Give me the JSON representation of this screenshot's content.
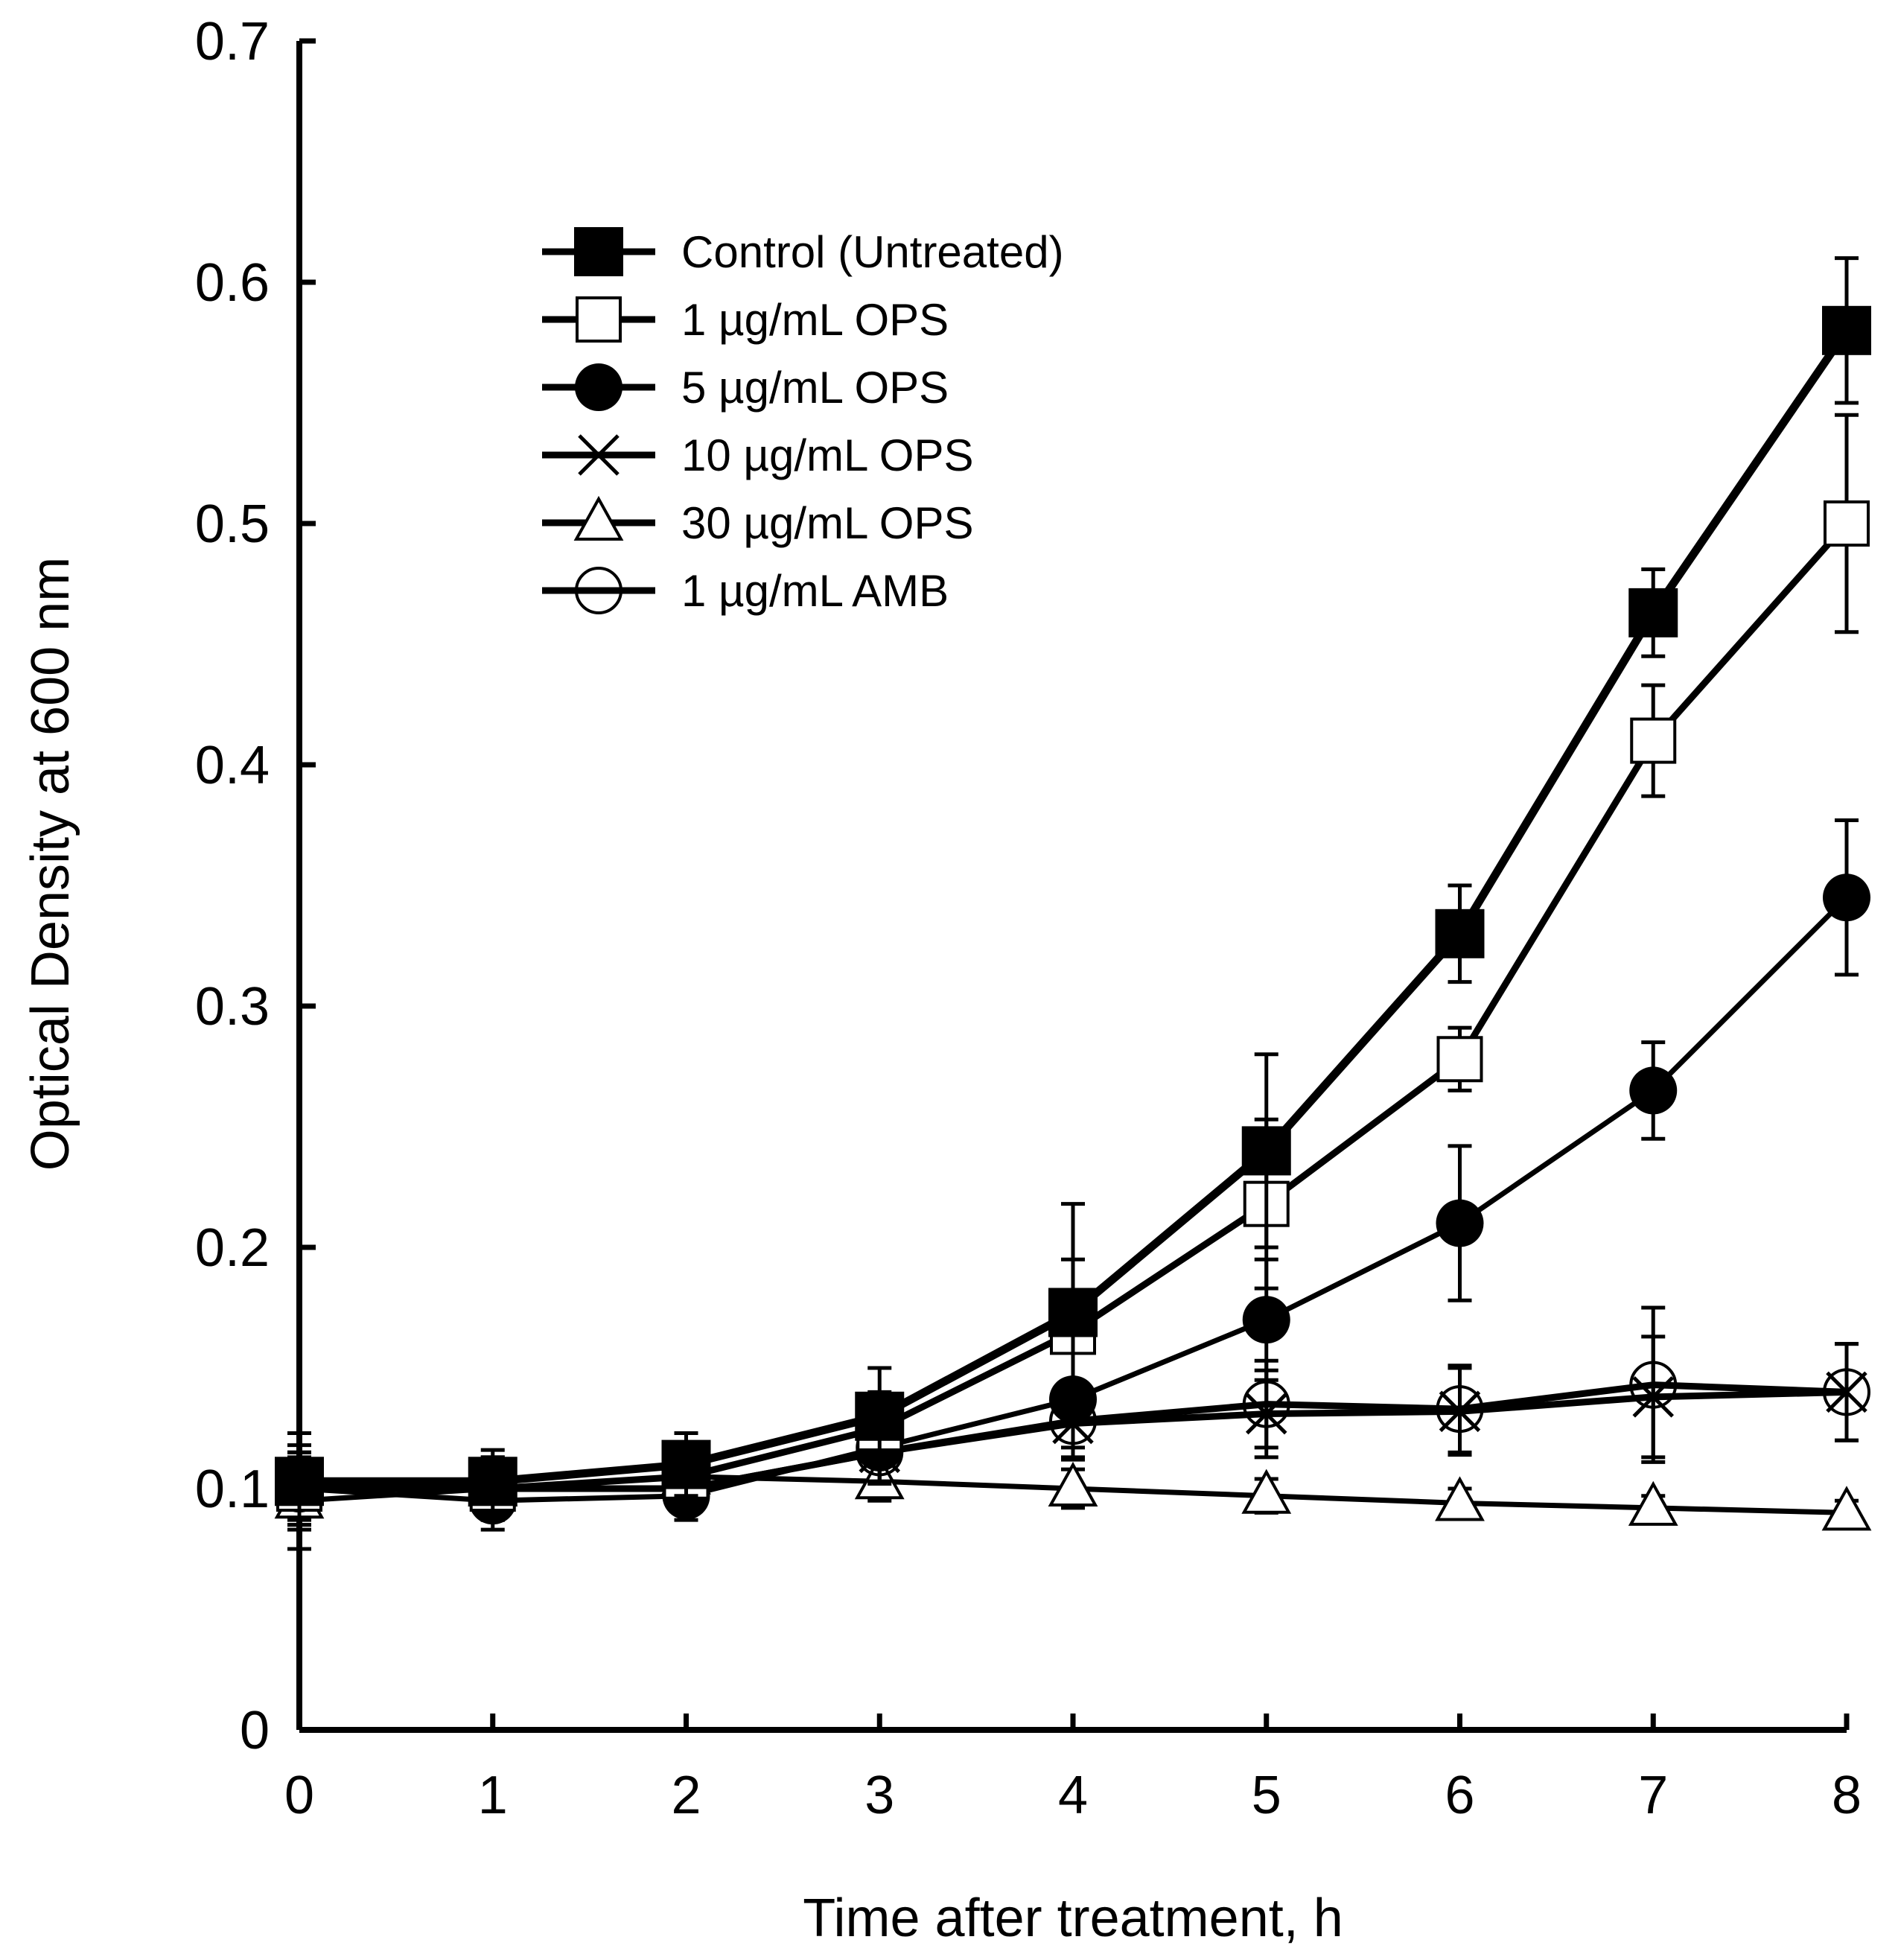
{
  "chart_data": {
    "type": "line",
    "title": "",
    "xlabel": "Time after treatment, h",
    "ylabel": "Optical Density at 600 nm",
    "xlim": [
      0,
      8
    ],
    "ylim": [
      0,
      0.7
    ],
    "grid": false,
    "legend_position": "top-left",
    "x_ticks": [
      "0",
      "1",
      "2",
      "3",
      "4",
      "5",
      "6",
      "7",
      "8"
    ],
    "y_ticks": [
      "0",
      "0.1",
      "0.2",
      "0.3",
      "0.4",
      "0.5",
      "0.6",
      "0.7"
    ],
    "x": [
      0,
      1,
      2,
      3,
      4,
      5,
      6,
      7,
      8
    ],
    "series": [
      {
        "name": "Control (Untreated)",
        "marker": "filled-square",
        "values": [
          0.103,
          0.103,
          0.11,
          0.13,
          0.173,
          0.24,
          0.33,
          0.463,
          0.58
        ],
        "errors": [
          0.02,
          0.013,
          0.013,
          0.02,
          0.045,
          0.04,
          0.02,
          0.018,
          0.03
        ]
      },
      {
        "name": "1 µg/mL OPS",
        "marker": "open-square",
        "values": [
          0.1,
          0.1,
          0.105,
          0.125,
          0.165,
          0.218,
          0.278,
          0.41,
          0.5
        ],
        "errors": [
          0.015,
          0.012,
          0.013,
          0.015,
          0.03,
          0.035,
          0.013,
          0.023,
          0.045
        ]
      },
      {
        "name": "5 µg/mL OPS",
        "marker": "filled-circle",
        "values": [
          0.1,
          0.095,
          0.097,
          0.117,
          0.137,
          0.17,
          0.21,
          0.265,
          0.345
        ],
        "errors": [
          0.013,
          0.012,
          0.01,
          0.015,
          0.02,
          0.025,
          0.032,
          0.02,
          0.032
        ]
      },
      {
        "name": "10 µg/mL OPS",
        "marker": "cross",
        "values": [
          0.103,
          0.1,
          0.1,
          0.115,
          0.127,
          0.131,
          0.132,
          0.138,
          0.14
        ],
        "errors": [
          0.015,
          0.013,
          0.01,
          0.012,
          0.015,
          0.018,
          0.018,
          0.025,
          0.02
        ]
      },
      {
        "name": "30 µg/mL OPS",
        "marker": "open-triangle",
        "values": [
          0.095,
          0.1,
          0.105,
          0.103,
          0.1,
          0.097,
          0.094,
          0.092,
          0.09
        ],
        "errors": [
          0.02,
          0.012,
          0.01,
          0.008,
          0.008,
          0.007,
          0.006,
          0.005,
          0.005
        ]
      },
      {
        "name": "1 µg/mL AMB",
        "marker": "open-circle",
        "values": [
          0.1,
          0.1,
          0.1,
          0.115,
          0.128,
          0.135,
          0.133,
          0.143,
          0.14
        ],
        "errors": [
          0.015,
          0.013,
          0.01,
          0.012,
          0.015,
          0.018,
          0.018,
          0.032,
          0.02
        ]
      }
    ]
  }
}
